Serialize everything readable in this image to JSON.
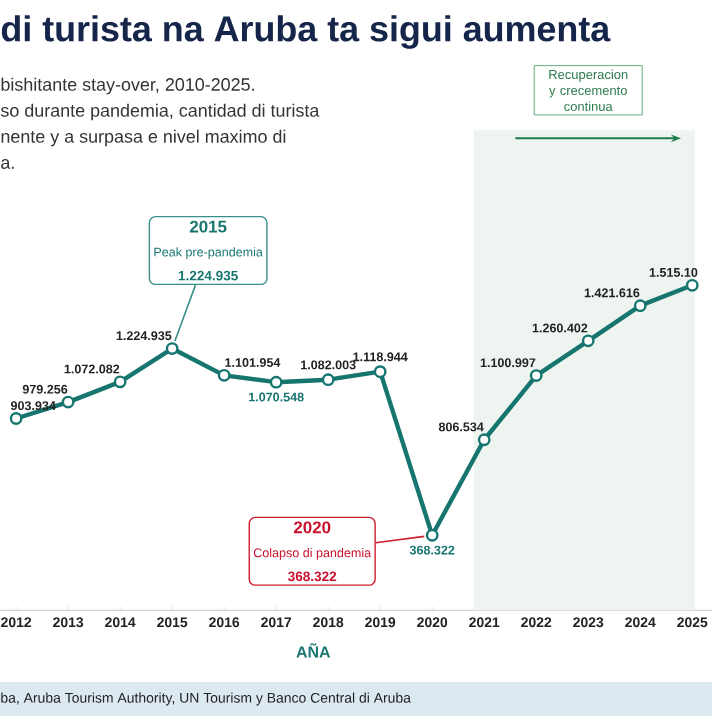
{
  "chart_data": {
    "type": "line",
    "title": "di turista na Aruba ta sigui aumenta",
    "subtitle": "bishitante stay-over, 2010-2025.",
    "xlabel": "AÑA",
    "categories": [
      "2012",
      "2013",
      "2014",
      "2015",
      "2016",
      "2017",
      "2018",
      "2019",
      "2020",
      "2021",
      "2022",
      "2023",
      "2024",
      "2025"
    ],
    "series": [
      {
        "color": "#17756f",
        "values": [
          903934,
          979256,
          1072082,
          1224935,
          1101954,
          1070548,
          1082003,
          1118944,
          368322,
          806534,
          1100997,
          1260402,
          1421616,
          1515100
        ],
        "value_labels": [
          "903.934",
          "979.256",
          "1.072.082",
          "1.224.935",
          "1.101.954",
          "1.070.548",
          "1.082.003",
          "1.118.944",
          "368.322",
          "806.534",
          "1.100.997",
          "1.260.402",
          "1.421.616",
          "1.515.10"
        ]
      }
    ],
    "tick_labels": "x",
    "marker": "circle",
    "line_style": "solid",
    "bands": [
      {
        "axis": "x",
        "from": "2021",
        "to": "2025",
        "label": "Recuperacion y crecemento continua",
        "color": "#eef4ef"
      }
    ],
    "annotations": [
      "so durante pandemia, cantidad di turista",
      "nente y a surpasa e nivel maximo di",
      "a.",
      "2015",
      "Peak pre-pandemia",
      "1.224.935",
      "2020",
      "Colapso di pandemia",
      "368.322",
      "ba, Aruba Tourism Authority, UN Tourism y Banco Central di Aruba"
    ]
  }
}
